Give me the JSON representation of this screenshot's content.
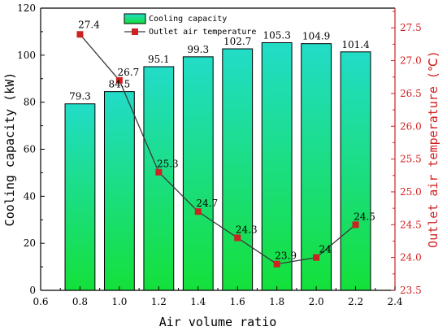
{
  "chart_data": {
    "type": "bar",
    "x": [
      0.8,
      1.0,
      1.2,
      1.4,
      1.6,
      1.8,
      2.0,
      2.2
    ],
    "xlabel": "Air volume ratio",
    "xlim": [
      0.6,
      2.4
    ],
    "xticks": [
      "0.6",
      "0.8",
      "1.0",
      "1.2",
      "1.4",
      "1.6",
      "1.8",
      "2.0",
      "2.2",
      "2.4"
    ],
    "ylabel": "Cooling capacity (kW)",
    "ylim": [
      0,
      120
    ],
    "yticks": [
      "0",
      "20",
      "40",
      "60",
      "80",
      "100",
      "120"
    ],
    "y2label": "Outlet air temperature (℃)",
    "y2lim": [
      23.5,
      27.8
    ],
    "y2ticks": [
      "23.5",
      "24.0",
      "24.5",
      "25.0",
      "25.5",
      "26.0",
      "26.5",
      "27.0",
      "27.5"
    ],
    "series": [
      {
        "name": "Cooling capacity",
        "type": "bar",
        "axis": "left",
        "values": [
          79.3,
          84.5,
          95.1,
          99.3,
          102.7,
          105.3,
          104.9,
          101.4
        ],
        "labels": [
          "79.3",
          "84.5",
          "95.1",
          "99.3",
          "102.7",
          "105.3",
          "104.9",
          "101.4"
        ]
      },
      {
        "name": "Outlet air temperature",
        "type": "line",
        "axis": "right",
        "values": [
          27.4,
          26.7,
          25.3,
          24.7,
          24.3,
          23.9,
          24.0,
          24.5
        ],
        "labels": [
          "27.4",
          "26.7",
          "25.3",
          "24.7",
          "24.3",
          "23.9",
          "24",
          "24.5"
        ]
      }
    ],
    "legend": "top-center",
    "grid": false,
    "colors": {
      "bar_top": "#22dcc8",
      "bar_bottom": "#14e03a",
      "line": "#3a3a3a",
      "marker": "#cc2222",
      "right_axis": "#d22020"
    }
  }
}
